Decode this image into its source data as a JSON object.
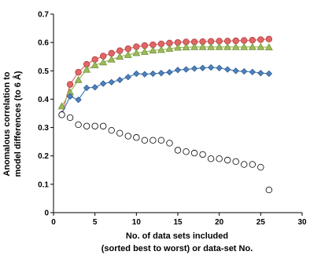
{
  "chart_data": {
    "type": "scatter",
    "title": "",
    "xlabel": [
      "No. of data sets included",
      "(sorted best to worst) or data-set No."
    ],
    "ylabel": [
      "Anomalous correlation to",
      "model differences (to 6 Å)"
    ],
    "xlim": [
      0,
      30
    ],
    "ylim": [
      0,
      0.7
    ],
    "xticks": [
      "0",
      "5",
      "10",
      "15",
      "20",
      "25",
      "30"
    ],
    "yticks": [
      "0",
      "0.1",
      "0.2",
      "0.3",
      "0.4",
      "0.5",
      "0.6",
      "0.7"
    ],
    "grid": false,
    "legend": "none",
    "series": [
      {
        "marker": "circle",
        "color": "#e06666",
        "edge": "#b33f3f",
        "line": true,
        "x": [
          1,
          2,
          3,
          4,
          5,
          6,
          7,
          8,
          9,
          10,
          11,
          12,
          13,
          14,
          15,
          16,
          17,
          18,
          19,
          20,
          21,
          22,
          23,
          24,
          25,
          26
        ],
        "y": [
          0.345,
          0.452,
          0.495,
          0.523,
          0.54,
          0.552,
          0.562,
          0.571,
          0.578,
          0.585,
          0.589,
          0.592,
          0.595,
          0.598,
          0.6,
          0.602,
          0.602,
          0.603,
          0.604,
          0.605,
          0.605,
          0.606,
          0.607,
          0.608,
          0.61,
          0.612
        ]
      },
      {
        "marker": "triangle",
        "color": "#9bbb59",
        "edge": "#76923c",
        "line": true,
        "x": [
          1,
          2,
          3,
          4,
          5,
          6,
          7,
          8,
          9,
          10,
          11,
          12,
          13,
          14,
          15,
          16,
          17,
          18,
          19,
          20,
          21,
          22,
          23,
          24,
          25,
          26
        ],
        "y": [
          0.375,
          0.425,
          0.468,
          0.504,
          0.52,
          0.53,
          0.54,
          0.55,
          0.556,
          0.563,
          0.567,
          0.572,
          0.574,
          0.578,
          0.582,
          0.583,
          0.584,
          0.584,
          0.584,
          0.584,
          0.584,
          0.584,
          0.584,
          0.584,
          0.584,
          0.583
        ]
      },
      {
        "marker": "diamond",
        "color": "#4f81bd",
        "edge": "#2c5a8f",
        "line": true,
        "x": [
          1,
          2,
          3,
          4,
          5,
          6,
          7,
          8,
          9,
          10,
          11,
          12,
          13,
          14,
          15,
          16,
          17,
          18,
          19,
          20,
          21,
          22,
          23,
          24,
          25,
          26
        ],
        "y": [
          0.348,
          0.41,
          0.398,
          0.44,
          0.442,
          0.455,
          0.46,
          0.468,
          0.478,
          0.49,
          0.488,
          0.49,
          0.492,
          0.495,
          0.503,
          0.505,
          0.508,
          0.51,
          0.512,
          0.51,
          0.505,
          0.5,
          0.498,
          0.496,
          0.492,
          0.49
        ]
      },
      {
        "marker": "open-circle",
        "color": "#ffffff",
        "edge": "#000000",
        "line": false,
        "x": [
          1,
          2,
          3,
          4,
          5,
          6,
          7,
          8,
          9,
          10,
          11,
          12,
          13,
          14,
          15,
          16,
          17,
          18,
          19,
          20,
          21,
          22,
          23,
          24,
          25,
          26
        ],
        "y": [
          0.345,
          0.335,
          0.31,
          0.305,
          0.305,
          0.305,
          0.29,
          0.28,
          0.27,
          0.265,
          0.255,
          0.255,
          0.255,
          0.245,
          0.22,
          0.215,
          0.21,
          0.205,
          0.19,
          0.19,
          0.185,
          0.18,
          0.17,
          0.17,
          0.16,
          0.08
        ]
      }
    ]
  }
}
